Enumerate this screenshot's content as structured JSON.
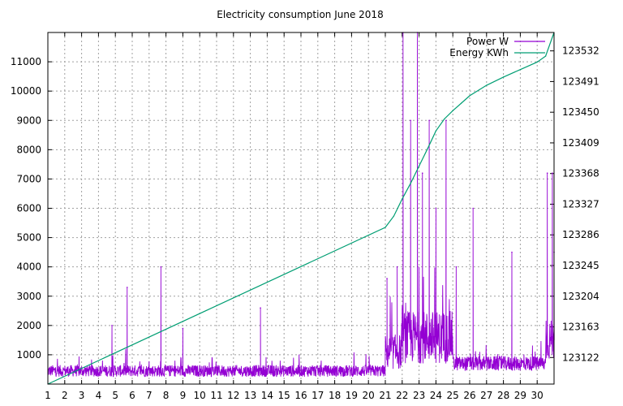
{
  "chart_data": {
    "type": "line",
    "title": "Electricity consumption June 2018",
    "xlabel": "",
    "ylabel": "",
    "x_ticks": [
      "1",
      "2",
      "3",
      "4",
      "5",
      "6",
      "7",
      "8",
      "9",
      "10",
      "11",
      "12",
      "13",
      "14",
      "15",
      "16",
      "17",
      "18",
      "19",
      "20",
      "21",
      "22",
      "23",
      "24",
      "25",
      "26",
      "27",
      "28",
      "29",
      "30"
    ],
    "xlim": [
      1,
      31
    ],
    "ylim": [
      0,
      12000
    ],
    "y_ticks": [
      1000,
      2000,
      3000,
      4000,
      5000,
      6000,
      7000,
      8000,
      9000,
      10000,
      11000
    ],
    "y2lim": [
      123086.5,
      123556.6
    ],
    "y2_ticks": [
      "123122",
      "123163",
      "123204",
      "123245",
      "123286",
      "123327",
      "123368",
      "123409",
      "123450",
      "123491",
      "123532"
    ],
    "y2_tick_values": [
      123122,
      123163,
      123204,
      123245,
      123286,
      123327,
      123368,
      123409,
      123450,
      123491,
      123532
    ],
    "grid": true,
    "legend_position": "top-right",
    "series": [
      {
        "name": "Power W",
        "axis": "left",
        "color": "#9400d3",
        "baseline_by_day": [
          {
            "day_from": 1,
            "day_to": 21,
            "baseline": 450,
            "noise": 200
          },
          {
            "day_from": 21,
            "day_to": 22,
            "baseline": 1100,
            "noise": 600
          },
          {
            "day_from": 22,
            "day_to": 25,
            "baseline": 1600,
            "noise": 900
          },
          {
            "day_from": 25,
            "day_to": 30.5,
            "baseline": 700,
            "noise": 250
          },
          {
            "day_from": 30.5,
            "day_to": 31,
            "baseline": 1500,
            "noise": 700
          }
        ],
        "spikes": [
          {
            "x": 4.8,
            "y": 2000
          },
          {
            "x": 5.7,
            "y": 3300
          },
          {
            "x": 7.7,
            "y": 4000
          },
          {
            "x": 9.0,
            "y": 1900
          },
          {
            "x": 13.6,
            "y": 2600
          },
          {
            "x": 21.1,
            "y": 3600
          },
          {
            "x": 21.7,
            "y": 4000
          },
          {
            "x": 22.05,
            "y": 12000
          },
          {
            "x": 22.5,
            "y": 9000
          },
          {
            "x": 22.9,
            "y": 12000
          },
          {
            "x": 23.2,
            "y": 7200
          },
          {
            "x": 23.6,
            "y": 9000
          },
          {
            "x": 24.0,
            "y": 6000
          },
          {
            "x": 24.6,
            "y": 9000
          },
          {
            "x": 25.2,
            "y": 4000
          },
          {
            "x": 26.2,
            "y": 6000
          },
          {
            "x": 28.5,
            "y": 4500
          },
          {
            "x": 30.6,
            "y": 7200
          },
          {
            "x": 30.9,
            "y": 7200
          },
          {
            "x": 31.0,
            "y": 4500
          }
        ]
      },
      {
        "name": "Energy KWh",
        "axis": "right",
        "color": "#009e73",
        "x": [
          1,
          21,
          21.5,
          22,
          22.5,
          23,
          23.5,
          24,
          24.5,
          25,
          25.5,
          26,
          27,
          28,
          29,
          30,
          30.5,
          31
        ],
        "y": [
          123086.5,
          123296,
          123311,
          123334,
          123355,
          123378,
          123401,
          123425,
          123441,
          123452,
          123462,
          123472,
          123486,
          123497,
          123507,
          123517,
          123525,
          123556.6
        ]
      }
    ]
  }
}
